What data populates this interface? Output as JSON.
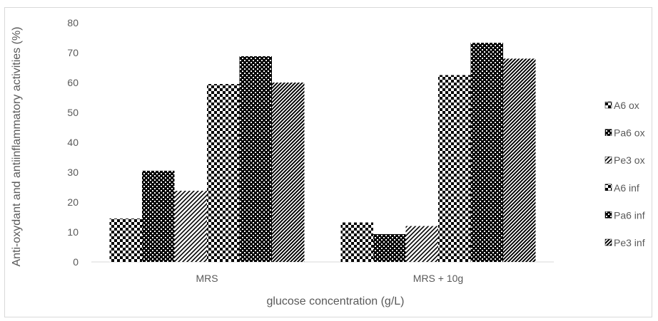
{
  "chart_data": {
    "type": "bar",
    "title": "",
    "xlabel": "glucose concentration (g/L)",
    "ylabel": "Anti-oxydant and antiinflammatory activities (%)",
    "ylim": [
      0,
      80
    ],
    "yticks": [
      "0",
      "10",
      "20",
      "30",
      "40",
      "50",
      "60",
      "70",
      "80"
    ],
    "categories": [
      "MRS",
      "MRS + 10g"
    ],
    "series": [
      {
        "name": "A6 ox",
        "values": [
          14.5,
          13.2
        ],
        "pattern": "checker-small"
      },
      {
        "name": "Pa6 ox",
        "values": [
          30.5,
          9.3
        ],
        "pattern": "checker-dense"
      },
      {
        "name": "Pe3 ox",
        "values": [
          23.8,
          12.0
        ],
        "pattern": "diag-light"
      },
      {
        "name": "A6 inf",
        "values": [
          59.5,
          62.5
        ],
        "pattern": "checker-small"
      },
      {
        "name": "Pa6 inf",
        "values": [
          68.8,
          73.3
        ],
        "pattern": "checker-dense"
      },
      {
        "name": "Pe3 inf",
        "values": [
          60.0,
          68.0
        ],
        "pattern": "diag-dense"
      }
    ],
    "grid": false,
    "legend_position": "right",
    "colors": {
      "fill": "#000000",
      "background": "#ffffff",
      "axis": "#d9d9d9",
      "text": "#595959"
    }
  }
}
